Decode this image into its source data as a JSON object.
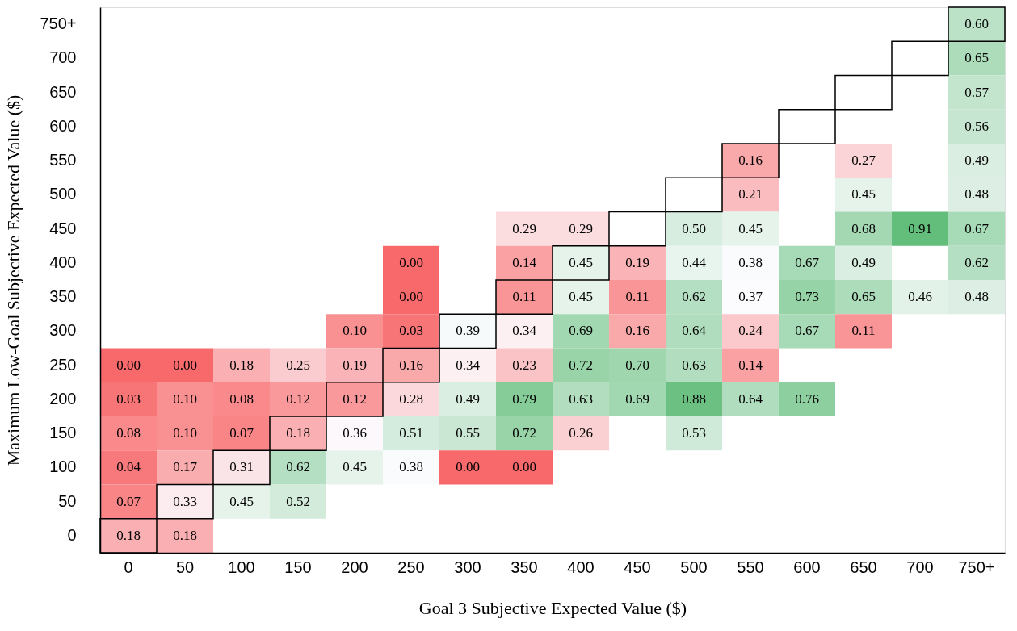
{
  "chart_data": {
    "type": "heatmap",
    "xlabel": "Goal 3 Subjective Expected Value ($)",
    "ylabel": "Maximum Low-Goal Subjective Expected Value ($)",
    "categories": [
      "0",
      "50",
      "100",
      "150",
      "200",
      "250",
      "300",
      "350",
      "400",
      "450",
      "500",
      "550",
      "600",
      "650",
      "700",
      "750+"
    ],
    "y_categories": [
      "750+",
      "700",
      "650",
      "600",
      "550",
      "500",
      "450",
      "400",
      "350",
      "300",
      "250",
      "200",
      "150",
      "100",
      "50",
      "0"
    ],
    "cells": [
      [
        null,
        null,
        null,
        null,
        null,
        null,
        null,
        null,
        null,
        null,
        null,
        null,
        null,
        null,
        null,
        0.6
      ],
      [
        null,
        null,
        null,
        null,
        null,
        null,
        null,
        null,
        null,
        null,
        null,
        null,
        null,
        null,
        null,
        0.65
      ],
      [
        null,
        null,
        null,
        null,
        null,
        null,
        null,
        null,
        null,
        null,
        null,
        null,
        null,
        null,
        null,
        0.57
      ],
      [
        null,
        null,
        null,
        null,
        null,
        null,
        null,
        null,
        null,
        null,
        null,
        null,
        null,
        null,
        null,
        0.56
      ],
      [
        null,
        null,
        null,
        null,
        null,
        null,
        null,
        null,
        null,
        null,
        null,
        0.16,
        null,
        0.27,
        null,
        0.49
      ],
      [
        null,
        null,
        null,
        null,
        null,
        null,
        null,
        null,
        null,
        null,
        null,
        0.21,
        null,
        0.45,
        null,
        0.48
      ],
      [
        null,
        null,
        null,
        null,
        null,
        null,
        null,
        0.29,
        0.29,
        null,
        0.5,
        0.45,
        null,
        0.68,
        0.91,
        0.67
      ],
      [
        null,
        null,
        null,
        null,
        null,
        0.0,
        null,
        0.14,
        0.45,
        0.19,
        0.44,
        0.38,
        0.67,
        0.49,
        null,
        0.62
      ],
      [
        null,
        null,
        null,
        null,
        null,
        0.0,
        null,
        0.11,
        0.45,
        0.11,
        0.62,
        0.37,
        0.73,
        0.65,
        0.46,
        0.48
      ],
      [
        null,
        null,
        null,
        null,
        0.1,
        0.03,
        0.39,
        0.34,
        0.69,
        0.16,
        0.64,
        0.24,
        0.67,
        0.11,
        null,
        null
      ],
      [
        0.0,
        0.0,
        0.18,
        0.25,
        0.19,
        0.16,
        0.34,
        0.23,
        0.72,
        0.7,
        0.63,
        0.14,
        null,
        null,
        null,
        null
      ],
      [
        0.03,
        0.1,
        0.08,
        0.12,
        0.12,
        0.28,
        0.49,
        0.79,
        0.63,
        0.69,
        0.88,
        0.64,
        0.76,
        null,
        null,
        null
      ],
      [
        0.08,
        0.1,
        0.07,
        0.18,
        0.36,
        0.51,
        0.55,
        0.72,
        0.26,
        null,
        0.53,
        null,
        null,
        null,
        null,
        null
      ],
      [
        0.04,
        0.17,
        0.31,
        0.62,
        0.45,
        0.38,
        0.0,
        0.0,
        null,
        null,
        null,
        null,
        null,
        null,
        null,
        null
      ],
      [
        0.07,
        0.33,
        0.45,
        0.52,
        null,
        null,
        null,
        null,
        null,
        null,
        null,
        null,
        null,
        null,
        null,
        null
      ],
      [
        0.18,
        0.18,
        null,
        null,
        null,
        null,
        null,
        null,
        null,
        null,
        null,
        null,
        null,
        null,
        null,
        null
      ]
    ],
    "cell_labels": [
      [
        null,
        null,
        null,
        null,
        null,
        null,
        null,
        null,
        null,
        null,
        null,
        null,
        null,
        null,
        null,
        "0.60"
      ],
      [
        null,
        null,
        null,
        null,
        null,
        null,
        null,
        null,
        null,
        null,
        null,
        null,
        null,
        null,
        null,
        "0.65"
      ],
      [
        null,
        null,
        null,
        null,
        null,
        null,
        null,
        null,
        null,
        null,
        null,
        null,
        null,
        null,
        null,
        "0.57"
      ],
      [
        null,
        null,
        null,
        null,
        null,
        null,
        null,
        null,
        null,
        null,
        null,
        null,
        null,
        null,
        null,
        "0.56"
      ],
      [
        null,
        null,
        null,
        null,
        null,
        null,
        null,
        null,
        null,
        null,
        null,
        "0.16",
        null,
        "0.27",
        null,
        "0.49"
      ],
      [
        null,
        null,
        null,
        null,
        null,
        null,
        null,
        null,
        null,
        null,
        null,
        "0.21",
        null,
        "0.45",
        null,
        "0.48"
      ],
      [
        null,
        null,
        null,
        null,
        null,
        null,
        null,
        "0.29",
        "0.29",
        null,
        "0.50",
        "0.45",
        null,
        "0.68",
        "0.91",
        "0.67"
      ],
      [
        null,
        null,
        null,
        null,
        null,
        "0.00",
        null,
        "0.14",
        "0.45",
        "0.19",
        "0.44",
        "0.38",
        "0.67",
        "0.49",
        null,
        "0.62"
      ],
      [
        null,
        null,
        null,
        null,
        null,
        "0.00",
        null,
        "0.11",
        "0.45",
        "0.11",
        "0.62",
        "0.37",
        "0.73",
        "0.65",
        "0.46",
        "0.48"
      ],
      [
        null,
        null,
        null,
        null,
        "0.10",
        "0.03",
        "0.39",
        "0.34",
        "0.69",
        "0.16",
        "0.64",
        "0.24",
        "0.67",
        "0.11",
        null,
        null
      ],
      [
        "0.00",
        "0.00",
        "0.18",
        "0.25",
        "0.19",
        "0.16",
        "0.34",
        "0.23",
        "0.72",
        "0.70",
        "0.63",
        "0.14",
        null,
        null,
        null,
        null
      ],
      [
        "0.03",
        "0.10",
        "0.08",
        "0.12",
        "0.12",
        "0.28",
        "0.49",
        "0.79",
        "0.63",
        "0.69",
        "0.88",
        "0.64",
        "0.76",
        null,
        null,
        null
      ],
      [
        "0.08",
        "0.10",
        "0.07",
        "0.18",
        "0.36",
        "0.51",
        "0.55",
        "0.72",
        "0.26",
        null,
        "0.53",
        null,
        null,
        null,
        null,
        null
      ],
      [
        "0.04",
        "0.17",
        "0.31",
        "0.62",
        "0.45",
        "0.38",
        "0.00",
        "0.00",
        null,
        null,
        null,
        null,
        null,
        null,
        null,
        null
      ],
      [
        "0.07",
        "0.33",
        "0.45",
        "0.52",
        null,
        null,
        null,
        null,
        null,
        null,
        null,
        null,
        null,
        null,
        null,
        null
      ],
      [
        "0.18",
        "0.18",
        null,
        null,
        null,
        null,
        null,
        null,
        null,
        null,
        null,
        null,
        null,
        null,
        null,
        null
      ]
    ]
  }
}
